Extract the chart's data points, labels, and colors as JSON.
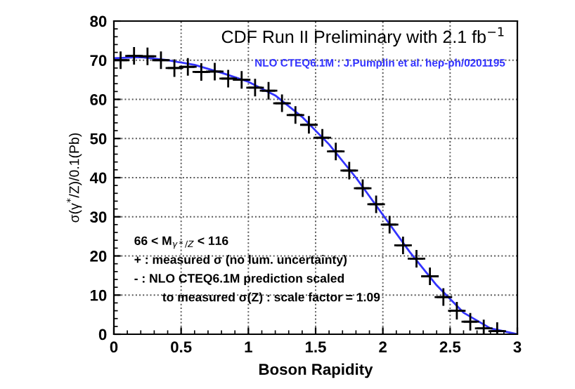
{
  "chart_data": {
    "type": "scatter",
    "title": "CDF Run II Preliminary with 2.1 fb$^{−1}$",
    "subtitle": "NLO CTEQ6.1M : J.Pumplin et al. hep-ph/0201195",
    "xlabel": "Boson Rapidity",
    "ylabel": "σ(γ$^{*}$/Z)/0.1(Pb)",
    "annotations": [
      "66 < M$_{γ*/Z}$ < 116",
      "+ : measured σ (no lum. uncertainty)",
      "- : NLO CTEQ6.1M prediction scaled",
      "to measured σ(Z) : scale factor = 1.09"
    ],
    "xlim": [
      0,
      3
    ],
    "ylim": [
      0,
      80
    ],
    "xticks": [
      0,
      0.5,
      1,
      1.5,
      2,
      2.5,
      3
    ],
    "yticks": [
      0,
      10,
      20,
      30,
      40,
      50,
      60,
      70,
      80
    ],
    "grid": true,
    "legend": false,
    "series": [
      {
        "type": "line",
        "color": "#3333ff",
        "marker": "none",
        "line_style": "solid",
        "x": [
          0,
          0.2,
          0.4,
          0.6,
          0.8,
          1.0,
          1.2,
          1.4,
          1.6,
          1.8,
          2.0,
          2.2,
          2.4,
          2.6,
          2.8,
          3.0
        ],
        "values": [
          70.5,
          70.8,
          70,
          68.8,
          66.8,
          64.5,
          61,
          55.5,
          48.5,
          40,
          30.5,
          21,
          12.5,
          5.5,
          1.5,
          0
        ]
      },
      {
        "color": "#000000",
        "marker": "cross",
        "x": [
          0.05,
          0.15,
          0.25,
          0.35,
          0.45,
          0.55,
          0.65,
          0.75,
          0.85,
          0.95,
          1.05,
          1.15,
          1.25,
          1.35,
          1.45,
          1.55,
          1.65,
          1.75,
          1.85,
          1.95,
          2.05,
          2.15,
          2.25,
          2.35,
          2.45,
          2.55,
          2.65,
          2.75,
          2.85
        ],
        "values": [
          70,
          71.1,
          71,
          70,
          68,
          68.3,
          67,
          67.1,
          65.3,
          65,
          63,
          62.2,
          59,
          56,
          53.5,
          50.2,
          46.7,
          41.8,
          37.3,
          33.2,
          28,
          22.7,
          19.3,
          14.8,
          9.5,
          6,
          3.2,
          1.5,
          0.8
        ],
        "xerrors": [
          0.05,
          0.05,
          0.05,
          0.05,
          0.05,
          0.05,
          0.05,
          0.05,
          0.05,
          0.05,
          0.05,
          0.05,
          0.05,
          0.05,
          0.05,
          0.05,
          0.05,
          0.05,
          0.05,
          0.05,
          0.05,
          0.05,
          0.05,
          0.05,
          0.05,
          0.05,
          0.05,
          0.05,
          0.05
        ]
      }
    ]
  }
}
